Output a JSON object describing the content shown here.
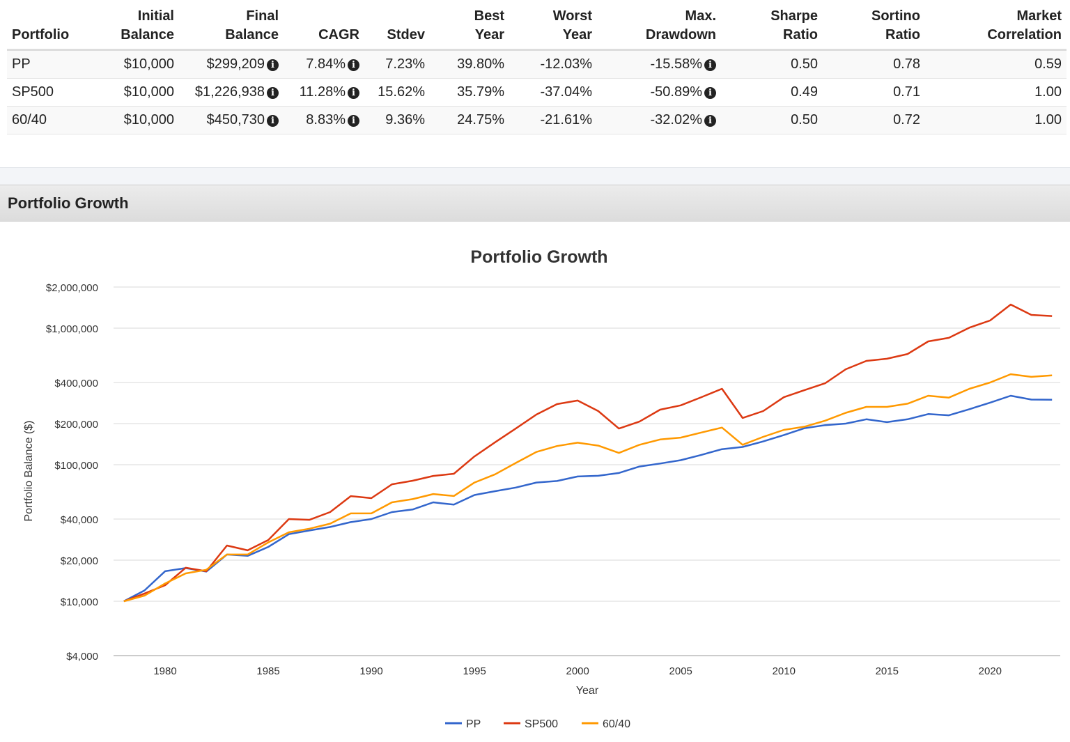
{
  "table": {
    "headers": [
      [
        "",
        "Portfolio"
      ],
      [
        "Initial",
        "Balance"
      ],
      [
        "Final",
        "Balance"
      ],
      [
        "",
        "CAGR"
      ],
      [
        "",
        "Stdev"
      ],
      [
        "Best",
        "Year"
      ],
      [
        "Worst",
        "Year"
      ],
      [
        "Max.",
        "Drawdown"
      ],
      [
        "Sharpe",
        "Ratio"
      ],
      [
        "Sortino",
        "Ratio"
      ],
      [
        "Market",
        "Correlation"
      ]
    ],
    "rows": [
      {
        "portfolio": "PP",
        "initial": "$10,000",
        "final": "$299,209",
        "cagr": "7.84%",
        "stdev": "7.23%",
        "best": "39.80%",
        "worst": "-12.03%",
        "maxdd": "-15.58%",
        "sharpe": "0.50",
        "sortino": "0.78",
        "corr": "0.59"
      },
      {
        "portfolio": "SP500",
        "initial": "$10,000",
        "final": "$1,226,938",
        "cagr": "11.28%",
        "stdev": "15.62%",
        "best": "35.79%",
        "worst": "-37.04%",
        "maxdd": "-50.89%",
        "sharpe": "0.49",
        "sortino": "0.71",
        "corr": "1.00"
      },
      {
        "portfolio": "60/40",
        "initial": "$10,000",
        "final": "$450,730",
        "cagr": "8.83%",
        "stdev": "9.36%",
        "best": "24.75%",
        "worst": "-21.61%",
        "maxdd": "-32.02%",
        "sharpe": "0.50",
        "sortino": "0.72",
        "corr": "1.00"
      }
    ],
    "info_icon": "info-circle-icon"
  },
  "section_title": "Portfolio Growth",
  "chart_data": {
    "type": "line",
    "title": "Portfolio Growth",
    "xlabel": "Year",
    "ylabel": "Portfolio Balance ($)",
    "yscale": "log",
    "xlim": [
      1977.5,
      2023.4
    ],
    "ylim": [
      4000,
      2000000
    ],
    "x_ticks": [
      1980,
      1985,
      1990,
      1995,
      2000,
      2005,
      2010,
      2015,
      2020
    ],
    "y_ticks": [
      4000,
      10000,
      20000,
      40000,
      100000,
      200000,
      400000,
      1000000,
      2000000
    ],
    "y_tick_labels": [
      "$4,000",
      "$10,000",
      "$20,000",
      "$40,000",
      "$100,000",
      "$200,000",
      "$400,000",
      "$1,000,000",
      "$2,000,000"
    ],
    "grid": true,
    "legend_position": "bottom",
    "x": [
      1978,
      1979,
      1980,
      1981,
      1982,
      1983,
      1984,
      1985,
      1986,
      1987,
      1988,
      1989,
      1990,
      1991,
      1992,
      1993,
      1994,
      1995,
      1996,
      1997,
      1998,
      1999,
      2000,
      2001,
      2002,
      2003,
      2004,
      2005,
      2006,
      2007,
      2008,
      2009,
      2010,
      2011,
      2012,
      2013,
      2014,
      2015,
      2016,
      2017,
      2018,
      2019,
      2020,
      2021,
      2022,
      2023
    ],
    "series": [
      {
        "name": "PP",
        "color": "#3366cc",
        "values": [
          10000,
          12000,
          16600,
          17500,
          16500,
          22000,
          21500,
          25000,
          31000,
          33000,
          35000,
          38000,
          40000,
          45000,
          47000,
          53000,
          51000,
          60000,
          64000,
          68000,
          74000,
          76000,
          82000,
          83000,
          87000,
          97000,
          102000,
          108000,
          118000,
          130000,
          135000,
          148000,
          165000,
          185000,
          195000,
          200000,
          215000,
          205000,
          215000,
          235000,
          230000,
          255000,
          285000,
          320000,
          300000,
          299209
        ]
      },
      {
        "name": "SP500",
        "color": "#dc3912",
        "values": [
          10000,
          11400,
          13100,
          17600,
          16600,
          25600,
          23600,
          28100,
          40000,
          39500,
          45000,
          58900,
          56900,
          71900,
          76300,
          82800,
          85800,
          115000,
          146000,
          184000,
          233000,
          278000,
          295000,
          247000,
          184000,
          207000,
          253000,
          272000,
          312000,
          360000,
          220000,
          247000,
          312000,
          352000,
          395000,
          500000,
          576000,
          597000,
          647000,
          800000,
          849000,
          1010000,
          1138000,
          1490000,
          1250000,
          1226938
        ]
      },
      {
        "name": "60/40",
        "color": "#ff9900",
        "values": [
          10000,
          11000,
          13500,
          16000,
          17000,
          22000,
          22000,
          27000,
          32000,
          34000,
          37000,
          44000,
          44000,
          53000,
          56000,
          61000,
          59000,
          74000,
          85000,
          103000,
          124000,
          137000,
          145000,
          138000,
          122000,
          140000,
          153000,
          158000,
          172000,
          187000,
          140000,
          160000,
          180000,
          190000,
          210000,
          240000,
          265000,
          265000,
          280000,
          320000,
          310000,
          360000,
          400000,
          460000,
          440000,
          450730
        ]
      }
    ]
  }
}
